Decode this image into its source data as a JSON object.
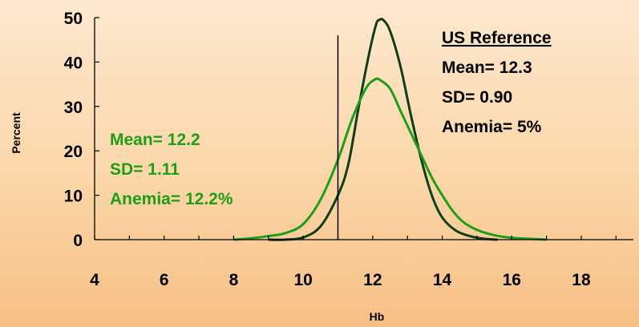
{
  "chart_data": {
    "type": "line",
    "xlabel": "Hb",
    "ylabel": "Percent",
    "xlim": [
      4,
      19.5
    ],
    "ylim": [
      0,
      50
    ],
    "x_ticks": [
      4,
      6,
      8,
      10,
      12,
      14,
      16,
      18
    ],
    "y_ticks": [
      0,
      10,
      20,
      30,
      40,
      50
    ],
    "grid": false,
    "cutoff_line": {
      "x": 11,
      "y_top": 46
    },
    "series": [
      {
        "color": "#0f3d17",
        "points": [
          [
            9.0,
            0
          ],
          [
            9.5,
            0
          ],
          [
            10.0,
            0.5
          ],
          [
            10.5,
            3
          ],
          [
            11.0,
            10
          ],
          [
            11.3,
            17
          ],
          [
            11.6,
            30
          ],
          [
            11.9,
            42
          ],
          [
            12.1,
            48.5
          ],
          [
            12.2,
            49.5
          ],
          [
            12.3,
            49.5
          ],
          [
            12.5,
            47
          ],
          [
            12.8,
            39
          ],
          [
            13.1,
            28
          ],
          [
            13.4,
            18
          ],
          [
            13.7,
            10
          ],
          [
            14.0,
            5
          ],
          [
            14.4,
            2
          ],
          [
            14.8,
            0.8
          ],
          [
            15.2,
            0.2
          ],
          [
            15.6,
            0
          ]
        ]
      },
      {
        "color": "#1e9e16",
        "points": [
          [
            8.0,
            0
          ],
          [
            8.5,
            0.3
          ],
          [
            9.0,
            0.8
          ],
          [
            9.5,
            1.5
          ],
          [
            10.0,
            3.5
          ],
          [
            10.5,
            9
          ],
          [
            11.0,
            18
          ],
          [
            11.4,
            27
          ],
          [
            11.8,
            34
          ],
          [
            12.05,
            36
          ],
          [
            12.2,
            36
          ],
          [
            12.5,
            34
          ],
          [
            12.8,
            29
          ],
          [
            13.1,
            24
          ],
          [
            13.4,
            19
          ],
          [
            13.7,
            14
          ],
          [
            14.0,
            10
          ],
          [
            14.3,
            6.5
          ],
          [
            14.6,
            4
          ],
          [
            15.0,
            2.2
          ],
          [
            15.5,
            1
          ],
          [
            16.0,
            0.4
          ],
          [
            16.5,
            0.2
          ],
          [
            17.0,
            0
          ]
        ]
      }
    ],
    "annotations": {
      "us_reference": {
        "heading": "US Reference",
        "mean": "Mean= 12.3",
        "sd": "SD= 0.90",
        "anemia": "Anemia= 5%",
        "color": "#000000"
      },
      "sample": {
        "mean": "Mean= 12.2",
        "sd": "SD= 1.11",
        "anemia": "Anemia= 12.2%",
        "color": "#1e9e16"
      }
    }
  }
}
